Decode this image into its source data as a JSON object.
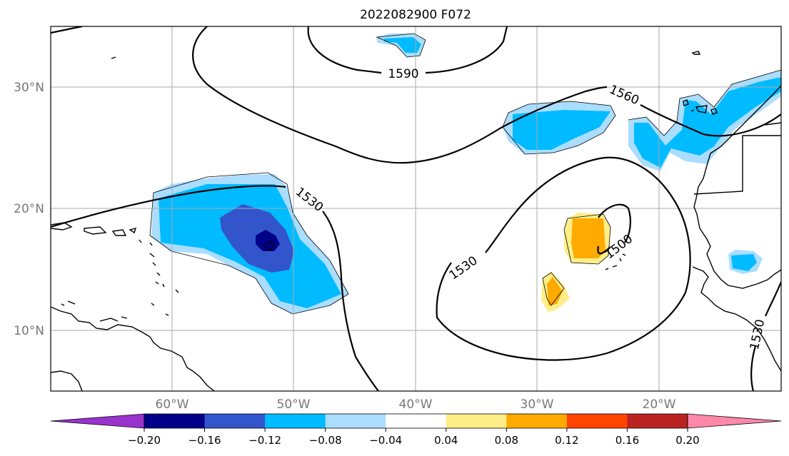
{
  "title": "2022082900 F072",
  "axes": {
    "lon_ticks": [
      "60°W",
      "50°W",
      "40°W",
      "30°W",
      "20°W"
    ],
    "lat_ticks": [
      "30°N",
      "20°N",
      "10°N"
    ]
  },
  "contour_labels": {
    "c1590": "1590",
    "c1560": "1560",
    "c1530_west": "1530",
    "c1530_east": "1530",
    "c1500": "1500",
    "c1530_africa": "1530"
  },
  "colorbar": {
    "tick_labels": [
      "−0.20",
      "−0.16",
      "−0.12",
      "−0.08",
      "−0.04",
      "0.04",
      "0.08",
      "0.12",
      "0.16",
      "0.20"
    ],
    "colors": [
      "#9933cc",
      "#000088",
      "#3355cc",
      "#00bbff",
      "#aaddff",
      "#ffffff",
      "#ffee88",
      "#ffaa00",
      "#ff4400",
      "#bb2222",
      "#ff88aa"
    ]
  },
  "chart_data": {
    "type": "heatmap",
    "title": "2022082900 F072",
    "lon_range": [
      -70,
      -10
    ],
    "lat_range": [
      5,
      35
    ],
    "contour_values": [
      1500,
      1530,
      1560,
      1590
    ],
    "color_levels": [
      -0.2,
      -0.16,
      -0.12,
      -0.08,
      -0.04,
      0.04,
      0.08,
      0.12,
      0.16,
      0.2
    ],
    "grid": true
  }
}
